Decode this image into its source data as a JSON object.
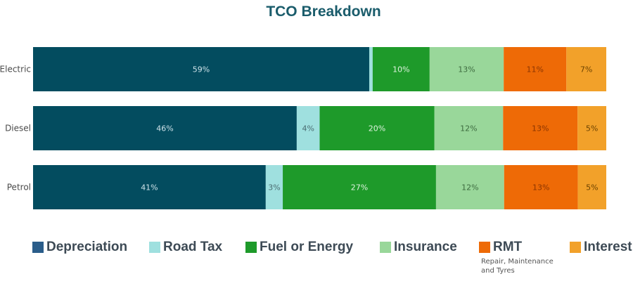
{
  "chart_data": {
    "type": "bar",
    "orientation": "horizontal-stacked-100",
    "title": "TCO Breakdown",
    "categories": [
      "Electric",
      "Diesel",
      "Petrol"
    ],
    "series": [
      {
        "name": "Depreciation",
        "color": "#034c5f",
        "values": [
          59,
          46,
          41
        ],
        "labels": [
          "59%",
          "46%",
          "41%"
        ],
        "label_color": "#cfe3ea"
      },
      {
        "name": "Road Tax",
        "color": "#9fe0df",
        "values": [
          0.6,
          4,
          3
        ],
        "labels": [
          "",
          "4%",
          "3%"
        ],
        "label_color": "#4a6b70"
      },
      {
        "name": "Fuel or Energy",
        "color": "#1e9a2a",
        "values": [
          10,
          20,
          27
        ],
        "labels": [
          "10%",
          "20%",
          "27%"
        ],
        "label_color": "#dff3df"
      },
      {
        "name": "Insurance",
        "color": "#99d79a",
        "values": [
          13,
          12,
          12
        ],
        "labels": [
          "13%",
          "12%",
          "12%"
        ],
        "label_color": "#3d6b3f"
      },
      {
        "name": "RMT",
        "color": "#ee6a06",
        "values": [
          11,
          13,
          13
        ],
        "labels": [
          "11%",
          "13%",
          "13%"
        ],
        "label_color": "#8a3400"
      },
      {
        "name": "Interest",
        "color": "#f2a12a",
        "values": [
          7,
          5,
          5
        ],
        "labels": [
          "7%",
          "5%",
          "5%"
        ],
        "label_color": "#6b4200"
      }
    ],
    "legend_position": "bottom",
    "grid": false
  },
  "legend": {
    "items": [
      {
        "name": "Depreciation",
        "color": "#2a5d8a"
      },
      {
        "name": "Road Tax",
        "color": "#9fe0df"
      },
      {
        "name": "Fuel or Energy",
        "color": "#1e9a2a"
      },
      {
        "name": "Insurance",
        "color": "#99d79a"
      },
      {
        "name": "RMT",
        "color": "#ee6a06"
      },
      {
        "name": "Interest",
        "color": "#f2a12a"
      }
    ],
    "rmt_subtitle": "Repair, Maintenance and Tyres"
  }
}
